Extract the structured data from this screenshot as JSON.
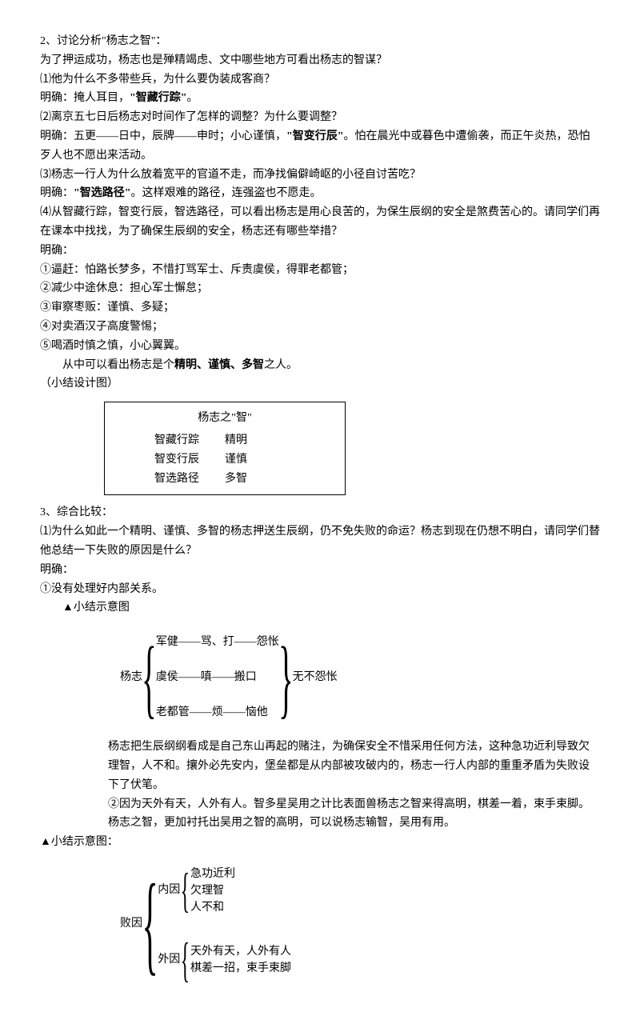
{
  "s2": {
    "h": "2、讨论分析\"杨志之智\"：",
    "intro": "为了押运成功，杨志也是殚精竭虑、文中哪些地方可看出杨志的智谋？",
    "q1": "⑴他为什么不多带些兵，为什么要伪装成客商？",
    "a1_pre": "明确：掩人耳目，",
    "a1_bold": "\"智藏行踪\"",
    "a1_post": "。",
    "q2": "⑵离京五七日后杨志对时间作了怎样的调整？为什么要调整？",
    "a2_pre": "明确：五更——日中，辰牌——申时；小心谨慎，",
    "a2_bold": "\"智变行辰\"",
    "a2_post": "。怕在晨光中或暮色中遭偷袭，而正午炎热，恐怕歹人也不愿出来活动。",
    "q3": "⑶杨志一行人为什么放着宽平的官道不走，而净找偏僻崎岖的小径自讨苦吃？",
    "a3_pre": "明确：",
    "a3_bold": "\"智选路径\"",
    "a3_post": "。这样艰难的路径，连强盗也不愿走。",
    "q4": "⑷从智藏行踪，智变行辰，智选路径，可以看出杨志是用心良苦的，为保生辰纲的安全是煞费苦心的。请同学们再在课本中找找，为了确保生辰纲的安全，杨志还有哪些举措？",
    "a4_label": "明确：",
    "li1": "①逼赶：怕路长梦多，不惜打骂军士、斥责虞侯，得罪老都管；",
    "li2": "②减少中途休息：担心军士懈怠；",
    "li3": "③审察枣贩：谨慎、多疑；",
    "li4": "④对卖酒汉子高度警惕；",
    "li5": "⑤喝酒时慎之慎，小心翼翼。",
    "concl_pre": "从中可以看出杨志是个",
    "concl_bold": "精明、谨慎、多智",
    "concl_post": "之人。",
    "design": "（小结设计图）"
  },
  "t1": {
    "title": "杨志之\"智\"",
    "r1c1": "智藏行踪",
    "r1c2": "精明",
    "r2c1": "智变行辰",
    "r2c2": "谨慎",
    "r3c1": "智选路径",
    "r3c2": "多智"
  },
  "s3": {
    "h": "3、综合比较：",
    "q1": "⑴为什么如此一个精明、谨慎、多智的杨志押送生辰纲，仍不免失败的命运？杨志到现在仍想不明白，请同学们替他总结一下失败的原因是什么？",
    "a_label": "明确：",
    "r1": "①没有处理好内部关系。",
    "d1_label": "▲小结示意图"
  },
  "d1": {
    "left": "杨志",
    "l1": "军健——骂、打——怨怅",
    "l2": "虞侯——嗔——搬口",
    "l3": "老都管——烦——恼他",
    "right": "无不怨怅"
  },
  "para": {
    "p1": "杨志把生辰纲纲看成是自己东山再起的赌注，为确保安全不惜采用任何方法，这种急功近利导致欠理智，人不和。攘外必先安内，堡垒都是从内部被攻破内的，杨志一行人内部的重重矛盾为失败设下了伏笔。",
    "p2": "②因为天外有天，人外有人。智多星吴用之计比表面兽杨志之智来得高明，棋差一着，束手束脚。杨志之智，更加衬托出吴用之智的高明，可以说杨志输智，吴用有用。"
  },
  "d2_label": "▲小结示意图：",
  "d2": {
    "root": "败因",
    "b1": "内因",
    "b1l1": "急功近利",
    "b1l2": "欠理智",
    "b1l3": "人不和",
    "b2": "外因",
    "b2l1": "天外有天，人外有人",
    "b2l2": "棋差一招，束手束脚"
  }
}
